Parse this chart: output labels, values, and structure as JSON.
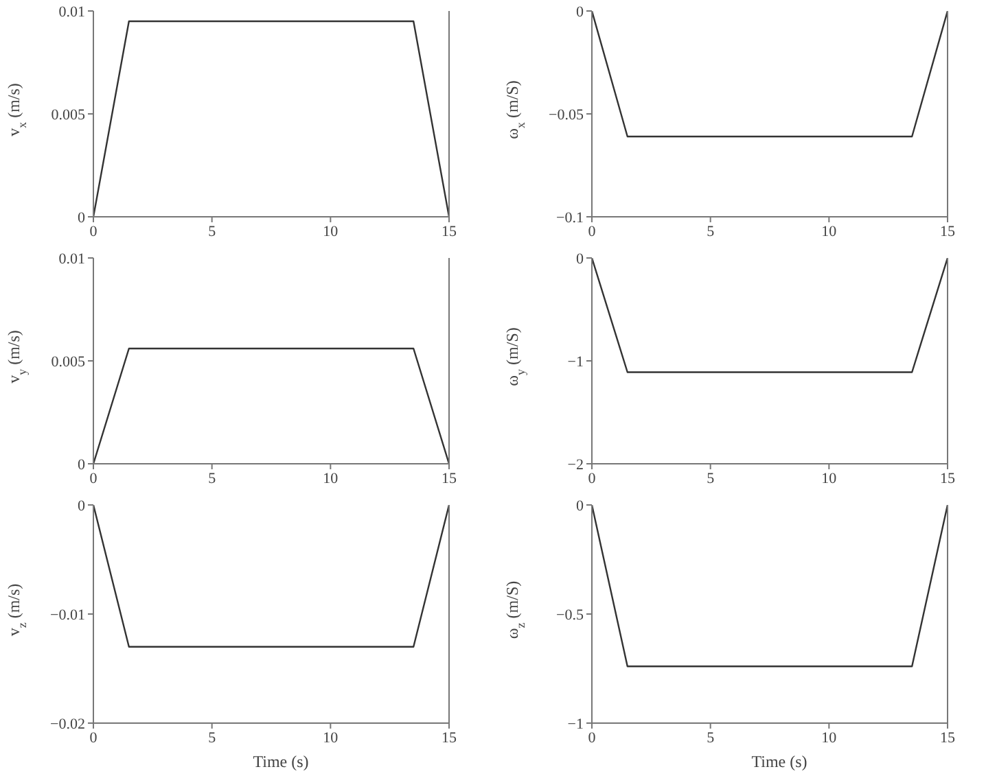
{
  "chart_data": [
    {
      "type": "line",
      "ylabel": "v$_{x}$ (m/s)",
      "x": [
        0,
        1.5,
        13.5,
        15
      ],
      "xlim": [
        0,
        15
      ],
      "xticks": [
        0,
        5,
        10,
        15
      ],
      "ylim": [
        0,
        0.01
      ],
      "yticks": [
        0,
        0.005,
        0.01
      ],
      "series": [
        {
          "color": "#333333",
          "values": [
            0,
            0.0095,
            0.0095,
            0
          ]
        }
      ]
    },
    {
      "type": "line",
      "ylabel": "ω$_{x}$ (m/S)",
      "x": [
        0,
        1.5,
        13.5,
        15
      ],
      "xlim": [
        0,
        15
      ],
      "xticks": [
        0,
        5,
        10,
        15
      ],
      "ylim": [
        -0.1,
        0
      ],
      "yticks": [
        -0.1,
        -0.05,
        0
      ],
      "series": [
        {
          "color": "#333333",
          "values": [
            0,
            -0.061,
            -0.061,
            0
          ]
        }
      ]
    },
    {
      "type": "line",
      "ylabel": "v$_{y}$ (m/s)",
      "x": [
        0,
        1.5,
        13.5,
        15
      ],
      "xlim": [
        0,
        15
      ],
      "xticks": [
        0,
        5,
        10,
        15
      ],
      "ylim": [
        0,
        0.01
      ],
      "yticks": [
        0,
        0.005,
        0.01
      ],
      "series": [
        {
          "color": "#333333",
          "values": [
            0,
            0.0056,
            0.0056,
            0
          ]
        }
      ]
    },
    {
      "type": "line",
      "ylabel": "ω$_{y}$ (m/S)",
      "x": [
        0,
        1.5,
        13.5,
        15
      ],
      "xlim": [
        0,
        15
      ],
      "xticks": [
        0,
        5,
        10,
        15
      ],
      "ylim": [
        -2,
        0
      ],
      "yticks": [
        -2,
        -1,
        0
      ],
      "series": [
        {
          "color": "#333333",
          "values": [
            0,
            -1.11,
            -1.11,
            0
          ]
        }
      ]
    },
    {
      "type": "line",
      "ylabel": "v$_{z}$ (m/s)",
      "xlabel": "Time (s)",
      "x": [
        0,
        1.5,
        13.5,
        15
      ],
      "xlim": [
        0,
        15
      ],
      "xticks": [
        0,
        5,
        10,
        15
      ],
      "ylim": [
        -0.02,
        0
      ],
      "yticks": [
        -0.02,
        -0.01,
        0
      ],
      "series": [
        {
          "color": "#333333",
          "values": [
            0,
            -0.013,
            -0.013,
            0
          ]
        }
      ]
    },
    {
      "type": "line",
      "ylabel": "ω$_{z}$ (m/S)",
      "xlabel": "Time (s)",
      "x": [
        0,
        1.5,
        13.5,
        15
      ],
      "xlim": [
        0,
        15
      ],
      "xticks": [
        0,
        5,
        10,
        15
      ],
      "ylim": [
        -1,
        0
      ],
      "yticks": [
        -1,
        -0.5,
        0
      ],
      "series": [
        {
          "color": "#333333",
          "values": [
            0,
            -0.74,
            -0.74,
            0
          ]
        }
      ]
    }
  ]
}
